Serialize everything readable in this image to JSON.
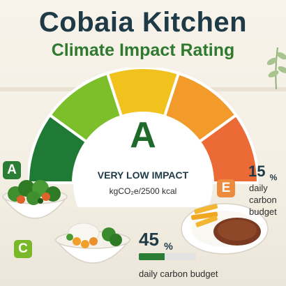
{
  "header": {
    "title": "Cobaia Kitchen",
    "subtitle": "Climate Impact Rating"
  },
  "rating": {
    "grade": "A",
    "impact_label": "VERY LOW IMPACT",
    "unit_label": "kgCO₂e/2500 kcal"
  },
  "gauge": {
    "segment_colors": [
      "#1f7a35",
      "#7cbf2a",
      "#f1c21e",
      "#f29a2a",
      "#ec6a35"
    ]
  },
  "dishes": [
    {
      "grade": "A",
      "name_icon": "vegetable-salad-bowl-icon",
      "badge_color": "#2a7d34"
    },
    {
      "grade": "C",
      "name_icon": "rice-vegetable-bowl-icon",
      "badge_color": "#79b829",
      "percent": "45",
      "percent_sign": "%",
      "budget_label": "daily carbon budget",
      "budget_fraction": 0.45
    },
    {
      "grade": "E",
      "name_icon": "steak-fries-plate-icon",
      "badge_color": "#ec8a3d",
      "percent": "15",
      "percent_sign": "%",
      "budget_label": "daily carbon budget"
    }
  ]
}
